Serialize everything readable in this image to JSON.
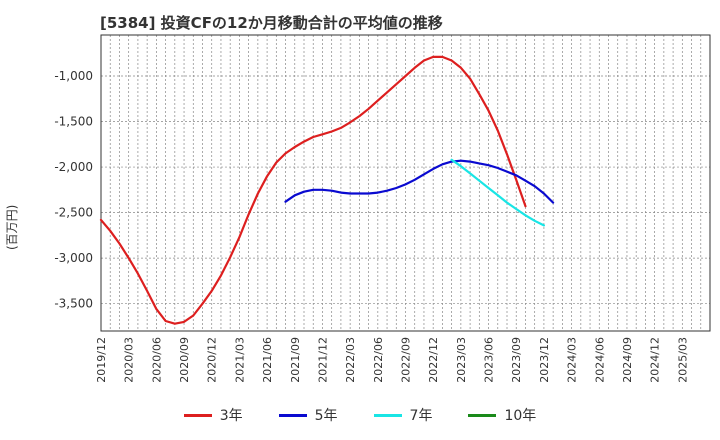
{
  "title": "[5384]  投資CFの12か月移動合計の平均値の推移",
  "chart_data": {
    "type": "line",
    "ylabel": "(百万円)",
    "ylim": [
      -3800,
      -550
    ],
    "yticks": [
      -1000,
      -1500,
      -2000,
      -2500,
      -3000,
      -3500
    ],
    "ytick_labels": [
      "-1,000",
      "-1,500",
      "-2,000",
      "-2,500",
      "-3,000",
      "-3,500"
    ],
    "x_categories": [
      "2019/12",
      "2020/03",
      "2020/06",
      "2020/09",
      "2020/12",
      "2021/03",
      "2021/06",
      "2021/09",
      "2021/12",
      "2022/03",
      "2022/06",
      "2022/09",
      "2022/12",
      "2023/03",
      "2023/06",
      "2023/09",
      "2023/12",
      "2024/03",
      "2024/06",
      "2024/09",
      "2024/12",
      "2025/03"
    ],
    "grid": true,
    "legend_position": "bottom",
    "series": [
      {
        "name": "3年",
        "color": "#dd1f1f",
        "start_index": 0,
        "values": [
          -2580,
          -2700,
          -2840,
          -3000,
          -3170,
          -3360,
          -3560,
          -3690,
          -3720,
          -3700,
          -3630,
          -3500,
          -3360,
          -3190,
          -2990,
          -2770,
          -2520,
          -2290,
          -2100,
          -1950,
          -1850,
          -1780,
          -1720,
          -1670,
          -1640,
          -1610,
          -1570,
          -1510,
          -1440,
          -1360,
          -1270,
          -1180,
          -1090,
          -1000,
          -910,
          -830,
          -790,
          -790,
          -830,
          -910,
          -1030,
          -1200,
          -1380,
          -1600,
          -1860,
          -2140,
          -2430
        ]
      },
      {
        "name": "5年",
        "color": "#0a0ad0",
        "start_index": 20,
        "values": [
          -2380,
          -2310,
          -2270,
          -2250,
          -2250,
          -2260,
          -2280,
          -2290,
          -2290,
          -2290,
          -2280,
          -2260,
          -2230,
          -2190,
          -2140,
          -2080,
          -2020,
          -1970,
          -1940,
          -1930,
          -1940,
          -1960,
          -1980,
          -2010,
          -2050,
          -2090,
          -2150,
          -2210,
          -2290,
          -2390
        ]
      },
      {
        "name": "7年",
        "color": "#19e5e5",
        "start_index": 38,
        "values": [
          -1920,
          -1990,
          -2070,
          -2150,
          -2230,
          -2310,
          -2390,
          -2460,
          -2530,
          -2590,
          -2640
        ]
      },
      {
        "name": "10年",
        "color": "#1a8a1a",
        "start_index": 0,
        "values": []
      }
    ]
  }
}
